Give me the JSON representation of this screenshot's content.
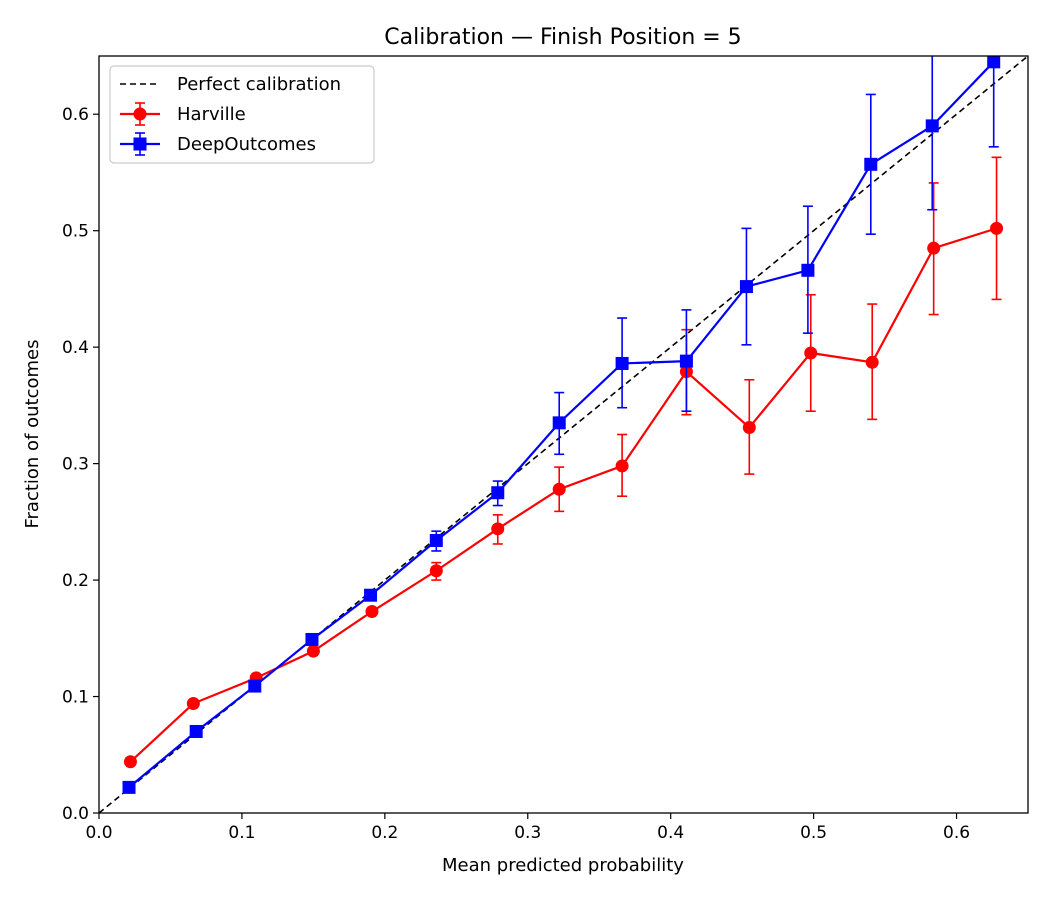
{
  "chart_data": {
    "type": "line",
    "title": "Calibration — Finish Position = 5",
    "xlabel": "Mean predicted probability",
    "ylabel": "Fraction of outcomes",
    "xlim": [
      0.0,
      0.65
    ],
    "ylim": [
      0.0,
      0.65
    ],
    "xticks": [
      "0.0",
      "0.1",
      "0.2",
      "0.3",
      "0.4",
      "0.5",
      "0.6"
    ],
    "yticks": [
      "0.0",
      "0.1",
      "0.2",
      "0.3",
      "0.4",
      "0.5",
      "0.6"
    ],
    "grid": false,
    "legend_position": "upper-left",
    "reference": {
      "name": "Perfect calibration",
      "style": "dashed",
      "color": "#000000"
    },
    "series": [
      {
        "name": "Harville",
        "color": "#ff0000",
        "marker": "circle",
        "points": [
          {
            "x": 0.022,
            "y": 0.044,
            "lo": 0.044,
            "hi": 0.044
          },
          {
            "x": 0.066,
            "y": 0.094,
            "lo": 0.094,
            "hi": 0.094
          },
          {
            "x": 0.11,
            "y": 0.116,
            "lo": 0.116,
            "hi": 0.116
          },
          {
            "x": 0.15,
            "y": 0.139,
            "lo": 0.139,
            "hi": 0.139
          },
          {
            "x": 0.191,
            "y": 0.173,
            "lo": 0.173,
            "hi": 0.173
          },
          {
            "x": 0.236,
            "y": 0.208,
            "lo": 0.2,
            "hi": 0.215
          },
          {
            "x": 0.279,
            "y": 0.244,
            "lo": 0.231,
            "hi": 0.256
          },
          {
            "x": 0.322,
            "y": 0.278,
            "lo": 0.259,
            "hi": 0.297
          },
          {
            "x": 0.366,
            "y": 0.298,
            "lo": 0.272,
            "hi": 0.325
          },
          {
            "x": 0.411,
            "y": 0.379,
            "lo": 0.342,
            "hi": 0.415
          },
          {
            "x": 0.455,
            "y": 0.331,
            "lo": 0.291,
            "hi": 0.372
          },
          {
            "x": 0.498,
            "y": 0.395,
            "lo": 0.345,
            "hi": 0.445
          },
          {
            "x": 0.541,
            "y": 0.387,
            "lo": 0.338,
            "hi": 0.437
          },
          {
            "x": 0.584,
            "y": 0.485,
            "lo": 0.428,
            "hi": 0.541
          },
          {
            "x": 0.628,
            "y": 0.502,
            "lo": 0.441,
            "hi": 0.563
          }
        ]
      },
      {
        "name": "DeepOutcomes",
        "color": "#0000ff",
        "marker": "square",
        "points": [
          {
            "x": 0.021,
            "y": 0.022,
            "lo": 0.022,
            "hi": 0.022
          },
          {
            "x": 0.068,
            "y": 0.07,
            "lo": 0.07,
            "hi": 0.07
          },
          {
            "x": 0.109,
            "y": 0.109,
            "lo": 0.109,
            "hi": 0.109
          },
          {
            "x": 0.149,
            "y": 0.149,
            "lo": 0.149,
            "hi": 0.149
          },
          {
            "x": 0.19,
            "y": 0.187,
            "lo": 0.187,
            "hi": 0.187
          },
          {
            "x": 0.236,
            "y": 0.234,
            "lo": 0.225,
            "hi": 0.242
          },
          {
            "x": 0.279,
            "y": 0.275,
            "lo": 0.264,
            "hi": 0.285
          },
          {
            "x": 0.322,
            "y": 0.335,
            "lo": 0.308,
            "hi": 0.361
          },
          {
            "x": 0.366,
            "y": 0.386,
            "lo": 0.348,
            "hi": 0.425
          },
          {
            "x": 0.411,
            "y": 0.388,
            "lo": 0.345,
            "hi": 0.432
          },
          {
            "x": 0.453,
            "y": 0.452,
            "lo": 0.402,
            "hi": 0.502
          },
          {
            "x": 0.496,
            "y": 0.466,
            "lo": 0.412,
            "hi": 0.521
          },
          {
            "x": 0.54,
            "y": 0.557,
            "lo": 0.497,
            "hi": 0.617
          },
          {
            "x": 0.583,
            "y": 0.59,
            "lo": 0.518,
            "hi": 0.663
          },
          {
            "x": 0.626,
            "y": 0.645,
            "lo": 0.572,
            "hi": 0.718
          }
        ]
      }
    ]
  }
}
